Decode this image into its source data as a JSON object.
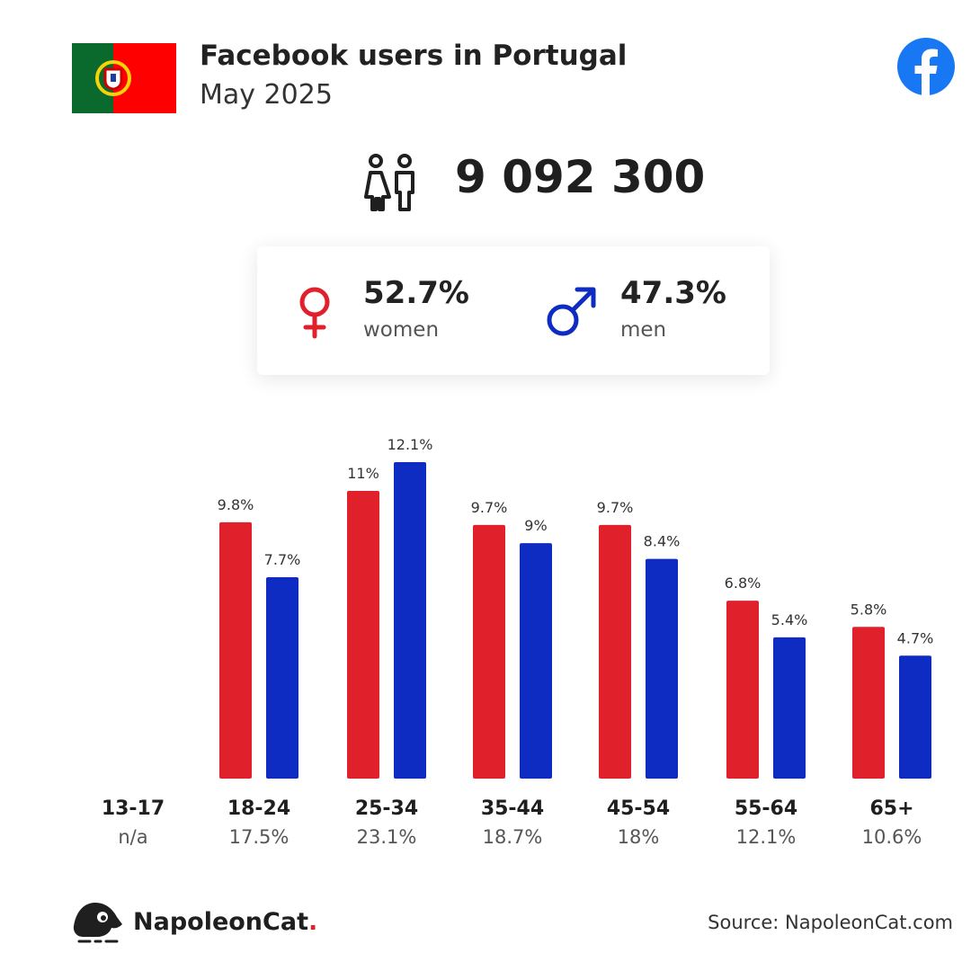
{
  "header": {
    "title": "Facebook users in Portugal",
    "subtitle": "May 2025",
    "flag_icon": "portugal-flag-icon",
    "platform_icon": "facebook-icon"
  },
  "summary": {
    "total_users": "9 092 300",
    "people_icon": "people-icon",
    "women": {
      "pct": "52.7%",
      "label": "women",
      "icon": "female-symbol-icon"
    },
    "men": {
      "pct": "47.3%",
      "label": "men",
      "icon": "male-symbol-icon"
    }
  },
  "colors": {
    "women": "#e0212b",
    "men": "#0f2cc2",
    "flag_green": "#0a6a2e",
    "flag_red": "#ff0000",
    "facebook": "#1877f2"
  },
  "chart_data": {
    "type": "bar",
    "categories": [
      "13-17",
      "18-24",
      "25-34",
      "35-44",
      "45-54",
      "55-64",
      "65+"
    ],
    "category_totals": [
      "n/a",
      "17.5%",
      "23.1%",
      "18.7%",
      "18%",
      "12.1%",
      "10.6%"
    ],
    "series": [
      {
        "key": "women",
        "values": [
          null,
          9.8,
          11,
          9.7,
          9.7,
          6.8,
          5.8
        ],
        "labels": [
          "",
          "9.8%",
          "11%",
          "9.7%",
          "9.7%",
          "6.8%",
          "5.8%"
        ],
        "color": "#e0212b"
      },
      {
        "key": "men",
        "values": [
          null,
          7.7,
          12.1,
          9,
          8.4,
          5.4,
          4.7
        ],
        "labels": [
          "",
          "7.7%",
          "12.1%",
          "9%",
          "8.4%",
          "5.4%",
          "4.7%"
        ],
        "color": "#0f2cc2"
      }
    ],
    "ylim": [
      0,
      12.1
    ],
    "grid": false
  },
  "footer": {
    "brand_icon": "napoleoncat-logo-icon",
    "brand": "NapoleonCat",
    "brand_dot": ".",
    "source": "Source: NapoleonCat.com"
  }
}
